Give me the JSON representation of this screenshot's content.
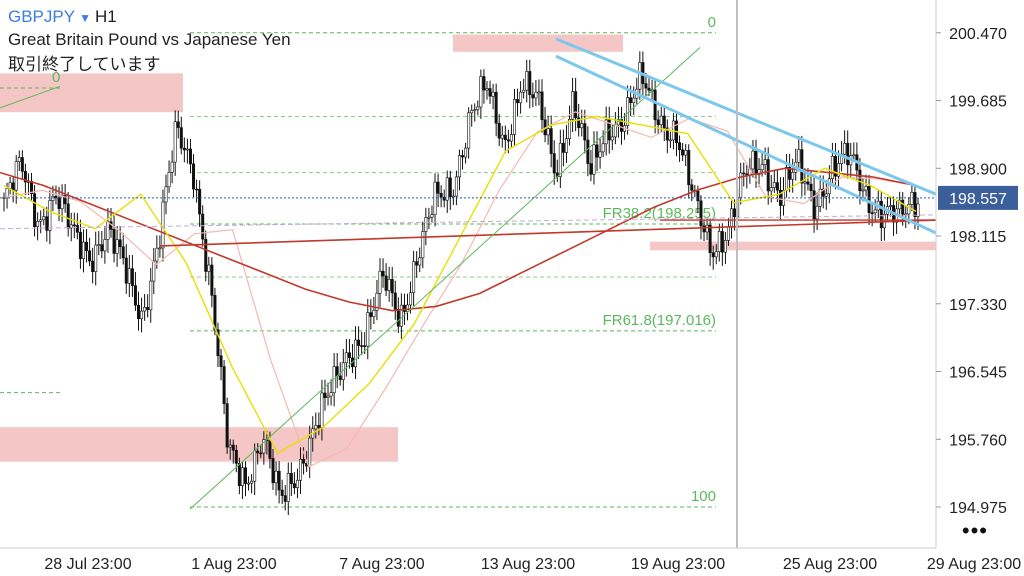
{
  "header": {
    "symbol": "GBPJPY",
    "caret": "▼",
    "timeframe": "H1",
    "description": "Great Britain Pound vs Japanese Yen",
    "status": "取引終了しています"
  },
  "more_label": "•••",
  "colors": {
    "up_candle": "#111111",
    "down_candle": "#111111",
    "ma_slow": "#c0392b",
    "ma_mid": "#f4b8b0",
    "ma_fast": "#e8e000",
    "zone": "#f5c6c6",
    "fib": "#5cb85c",
    "trendline": "#7cc8ec",
    "bid_line": "#2a5aa8",
    "bid_box": "#3b5f9a"
  },
  "chart_data": {
    "type": "line",
    "symbol": "GBPJPY",
    "timeframe": "H1",
    "x_ticks": [
      "28 Jul 23:00",
      "1 Aug 23:00",
      "7 Aug 23:00",
      "13 Aug 23:00",
      "19 Aug 23:00",
      "25 Aug 23:00",
      "29 Aug 23:00"
    ],
    "y_ticks": [
      "200.470",
      "199.685",
      "198.900",
      "198.115",
      "197.330",
      "196.545",
      "195.760",
      "194.975"
    ],
    "ylim": [
      194.5,
      200.85
    ],
    "current_price": "198.557",
    "price_path": [
      198.5,
      198.9,
      198.3,
      198.6,
      198.1,
      197.9,
      198.2,
      197.7,
      197.2,
      198.1,
      199.3,
      198.9,
      197.5,
      195.6,
      195.3,
      195.8,
      195.0,
      195.4,
      195.9,
      196.3,
      196.8,
      197.0,
      197.6,
      197.2,
      197.9,
      198.5,
      198.7,
      199.5,
      199.8,
      199.2,
      199.9,
      199.6,
      198.9,
      199.7,
      198.8,
      199.4,
      199.5,
      199.9,
      199.5,
      199.3,
      198.5,
      198.0,
      198.2,
      198.8,
      199.0,
      198.6,
      198.9,
      198.5,
      198.9,
      199.0,
      198.6,
      198.4,
      198.3,
      198.56
    ],
    "moving_averages": [
      {
        "role": "slow",
        "values": [
          198.85,
          198.7,
          198.5,
          198.3,
          198.1,
          197.9,
          197.7,
          197.5,
          197.35,
          197.25,
          197.3,
          197.45,
          197.7,
          197.95,
          198.2,
          198.45,
          198.65,
          198.8,
          198.9,
          198.85,
          198.8,
          198.7
        ]
      },
      {
        "role": "fast",
        "values": [
          198.7,
          198.4,
          198.2,
          198.6,
          197.8,
          196.6,
          195.6,
          195.9,
          196.4,
          197.1,
          198.1,
          199.1,
          199.4,
          199.5,
          199.4,
          199.3,
          198.5,
          198.6,
          198.9,
          198.7,
          198.4
        ]
      }
    ],
    "fibonacci": {
      "labels": [
        {
          "text": "0",
          "price": 200.47
        },
        {
          "text": "FR38.2(198.255)",
          "price": 198.255
        },
        {
          "text": "FR61.8(197.016)",
          "price": 197.016
        },
        {
          "text": "100",
          "price": 194.975
        }
      ],
      "left_label": "0"
    },
    "zones": [
      {
        "from": 199.55,
        "to": 200.0
      },
      {
        "from": 200.25,
        "to": 200.45
      },
      {
        "from": 195.5,
        "to": 195.9
      },
      {
        "from": 197.95,
        "to": 198.05
      }
    ],
    "support_line_price": 198.3,
    "grid": false,
    "legend": "none"
  }
}
